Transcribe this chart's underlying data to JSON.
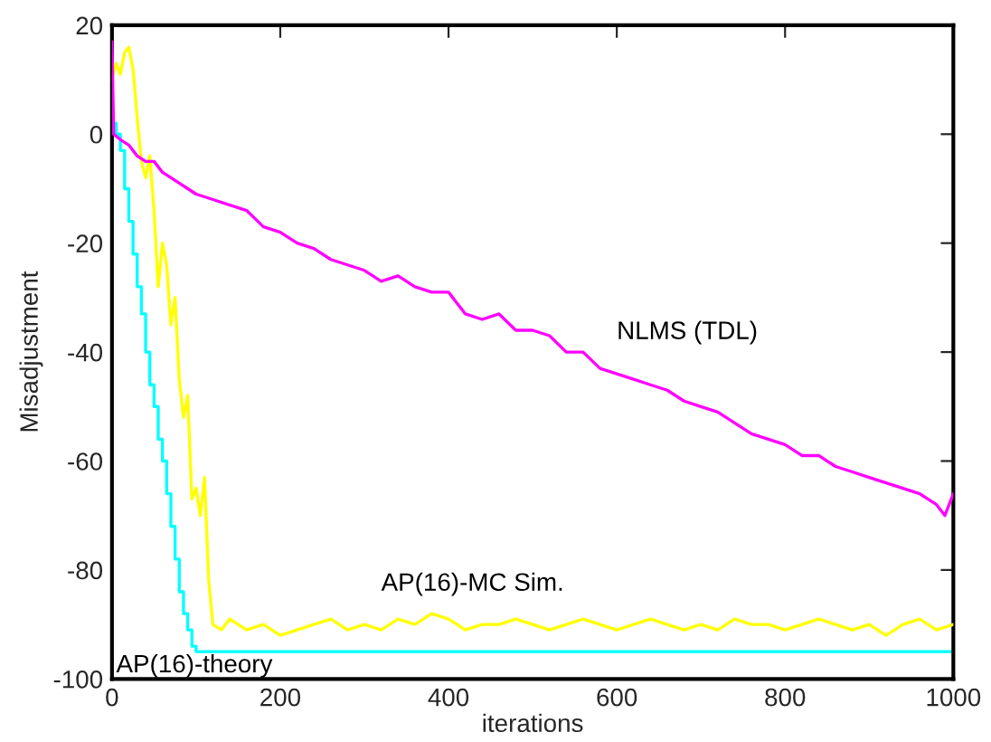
{
  "chart_data": {
    "type": "line",
    "xlabel": "iterations",
    "ylabel": "Misadjustment",
    "xlim": [
      0,
      1000
    ],
    "ylim": [
      -100,
      20
    ],
    "xticks": [
      0,
      200,
      400,
      600,
      800,
      1000
    ],
    "yticks": [
      -100,
      -80,
      -60,
      -40,
      -20,
      0,
      20
    ],
    "grid": false,
    "legend": false,
    "series": [
      {
        "name": "NLMS (TDL)",
        "color": "#ff00ff",
        "x": [
          0,
          2,
          10,
          20,
          30,
          40,
          50,
          60,
          70,
          80,
          90,
          100,
          120,
          140,
          160,
          180,
          200,
          220,
          240,
          260,
          280,
          300,
          320,
          340,
          360,
          380,
          400,
          420,
          440,
          460,
          480,
          500,
          520,
          540,
          560,
          580,
          600,
          620,
          640,
          660,
          680,
          700,
          720,
          740,
          760,
          780,
          800,
          820,
          840,
          860,
          880,
          900,
          920,
          940,
          960,
          980,
          990,
          1000
        ],
        "values": [
          17,
          0,
          -1,
          -2,
          -4,
          -5,
          -5,
          -7,
          -8,
          -9,
          -10,
          -11,
          -12,
          -13,
          -14,
          -17,
          -18,
          -20,
          -21,
          -23,
          -24,
          -25,
          -27,
          -26,
          -28,
          -29,
          -29,
          -33,
          -34,
          -33,
          -36,
          -36,
          -37,
          -40,
          -40,
          -43,
          -44,
          -45,
          -46,
          -47,
          -49,
          -50,
          -51,
          -53,
          -55,
          -56,
          -57,
          -59,
          -59,
          -61,
          -62,
          -63,
          -64,
          -65,
          -66,
          -68,
          -70,
          -66
        ]
      },
      {
        "name": "AP(16)-MC Sim.",
        "color": "#ffff00",
        "x": [
          0,
          5,
          10,
          15,
          20,
          25,
          30,
          35,
          40,
          45,
          50,
          55,
          60,
          65,
          70,
          75,
          80,
          85,
          90,
          95,
          100,
          105,
          110,
          115,
          120,
          130,
          140,
          150,
          160,
          180,
          200,
          220,
          240,
          260,
          280,
          300,
          320,
          340,
          360,
          380,
          400,
          420,
          440,
          460,
          480,
          500,
          520,
          540,
          560,
          580,
          600,
          620,
          640,
          660,
          680,
          700,
          720,
          740,
          760,
          780,
          800,
          820,
          840,
          860,
          880,
          900,
          920,
          940,
          960,
          980,
          1000
        ],
        "values": [
          10,
          13,
          11,
          15,
          16,
          12,
          3,
          -5,
          -8,
          -4,
          -14,
          -28,
          -20,
          -24,
          -35,
          -30,
          -45,
          -52,
          -48,
          -67,
          -65,
          -70,
          -63,
          -82,
          -90,
          -91,
          -89,
          -90,
          -91,
          -90,
          -92,
          -91,
          -90,
          -89,
          -91,
          -90,
          -91,
          -89,
          -90,
          -88,
          -89,
          -91,
          -90,
          -90,
          -89,
          -90,
          -91,
          -90,
          -89,
          -90,
          -91,
          -90,
          -89,
          -90,
          -91,
          -90,
          -91,
          -89,
          -90,
          -90,
          -91,
          -90,
          -89,
          -90,
          -91,
          -90,
          -92,
          -90,
          -89,
          -91,
          -90
        ]
      },
      {
        "name": "AP(16)-theory",
        "color": "#00ffff",
        "type": "step",
        "x": [
          0,
          5,
          10,
          15,
          20,
          25,
          30,
          35,
          40,
          45,
          50,
          55,
          60,
          65,
          70,
          75,
          80,
          85,
          90,
          95,
          100,
          105,
          110,
          1000
        ],
        "values": [
          2,
          0,
          -3,
          -10,
          -16,
          -22,
          -28,
          -33,
          -40,
          -46,
          -50,
          -56,
          -60,
          -66,
          -72,
          -78,
          -84,
          -88,
          -91,
          -94,
          -95,
          -95,
          -95,
          -95
        ]
      }
    ]
  }
}
